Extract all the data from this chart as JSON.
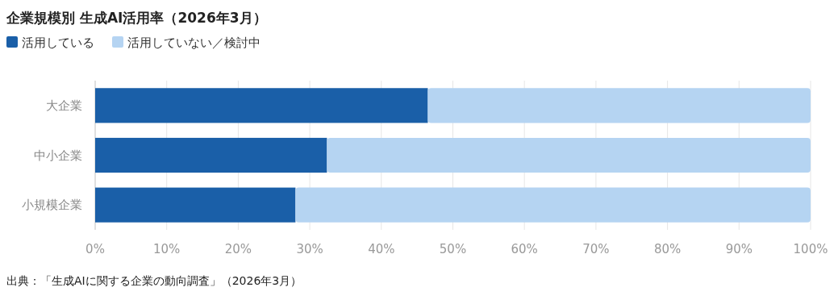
{
  "chart_data": {
    "type": "bar",
    "orientation": "horizontal",
    "stacked": true,
    "title": "企業規模別 生成AI活用率（2026年3月）",
    "categories": [
      "大企業",
      "中小企業",
      "小規模企業"
    ],
    "series": [
      {
        "name": "活用している",
        "color": "#1a5fa8",
        "values": [
          46.5,
          32.4,
          28.0
        ]
      },
      {
        "name": "活用していない／検討中",
        "color": "#b5d4f2",
        "values": [
          53.5,
          67.6,
          72.0
        ]
      }
    ],
    "xlim": [
      0,
      100
    ],
    "xticks": [
      {
        "value": 0,
        "label": "0%"
      },
      {
        "value": 10,
        "label": "10%"
      },
      {
        "value": 20,
        "label": "20%"
      },
      {
        "value": 30,
        "label": "30%"
      },
      {
        "value": 40,
        "label": "40%"
      },
      {
        "value": 50,
        "label": "50%"
      },
      {
        "value": 60,
        "label": "60%"
      },
      {
        "value": 70,
        "label": "70%"
      },
      {
        "value": 80,
        "label": "80%"
      },
      {
        "value": 90,
        "label": "90%"
      },
      {
        "value": 100,
        "label": "100%"
      }
    ],
    "grid": "x",
    "legend": "top left",
    "annotations": [
      "出典：「生成AIに関する企業の動向調査」（2026年3月）"
    ]
  }
}
